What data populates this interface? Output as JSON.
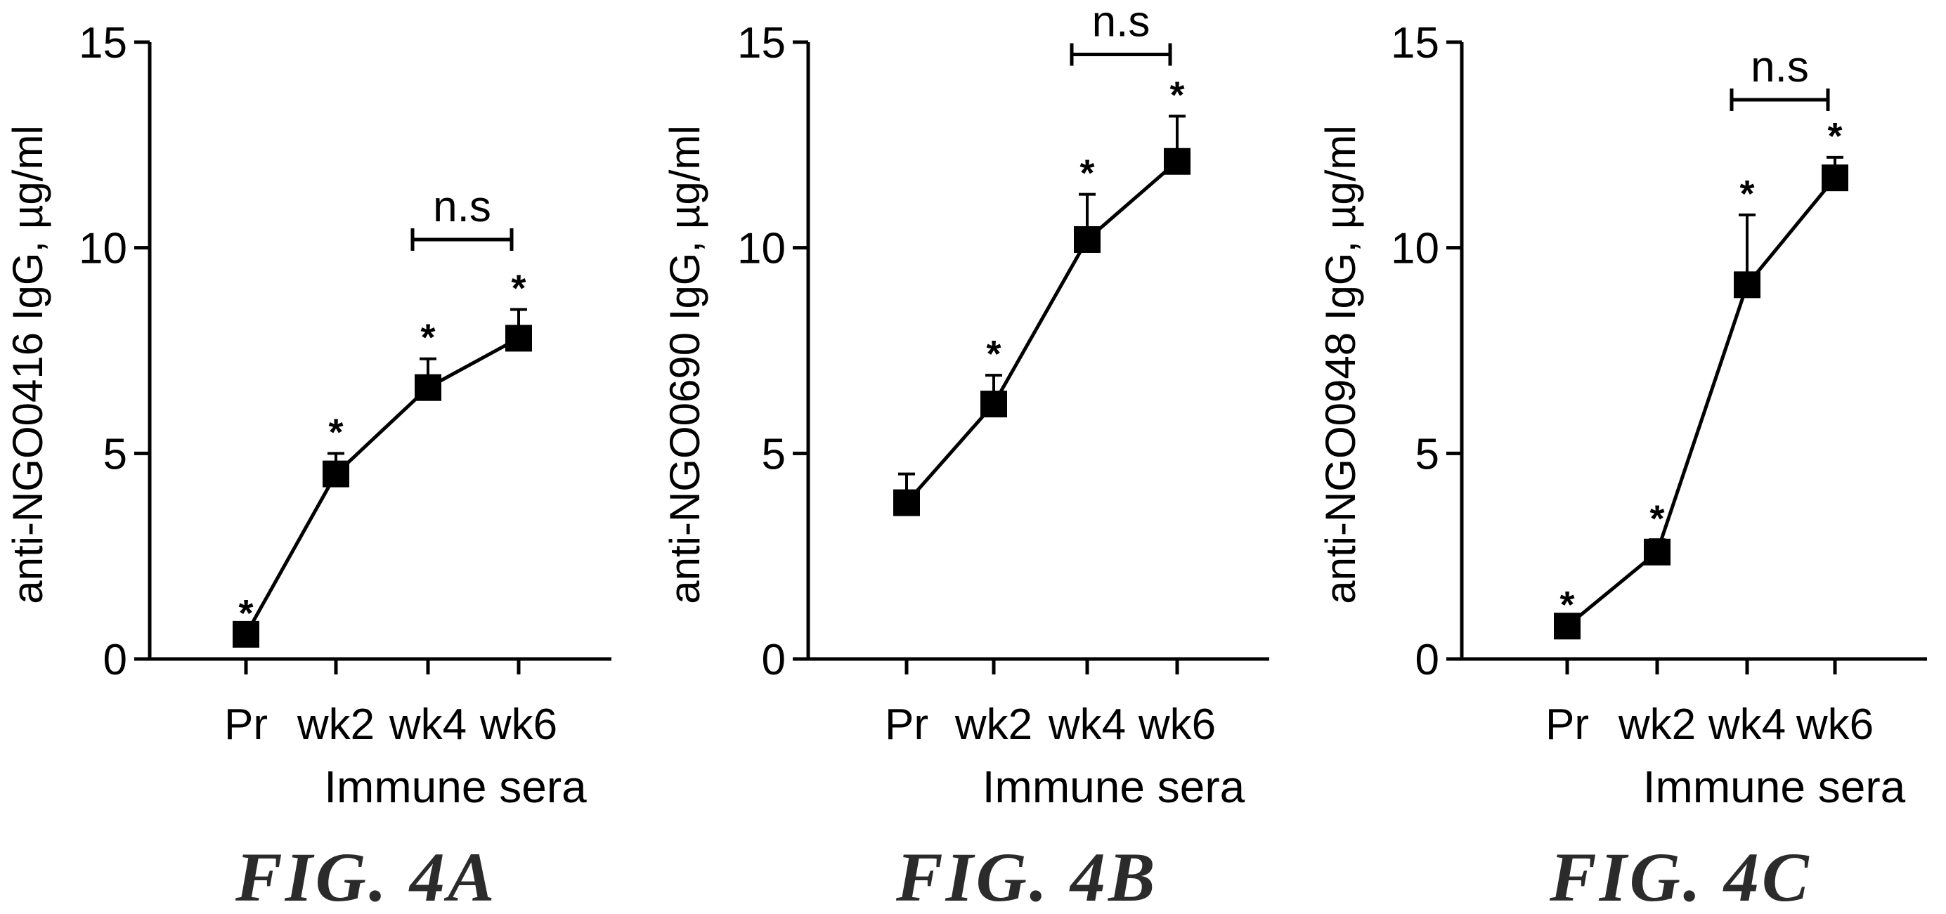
{
  "chart_data": [
    {
      "type": "line",
      "caption": "FIG. 4A",
      "categories": [
        "Pr",
        "wk2",
        "wk4",
        "wk6"
      ],
      "values": [
        0.6,
        4.5,
        6.6,
        7.8
      ],
      "error": [
        0.0,
        0.5,
        0.7,
        0.7
      ],
      "significance": [
        "*",
        "*",
        "*",
        "*"
      ],
      "bracket": {
        "from": 2,
        "to": 3,
        "label": "n.s",
        "y": 10.2
      },
      "xlabel": "Immune sera",
      "ylabel": "anti-NGO0416 IgG, µg/ml",
      "ylim": [
        0,
        15
      ],
      "yticks": [
        0,
        5,
        10,
        15
      ],
      "grid": false
    },
    {
      "type": "line",
      "caption": "FIG. 4B",
      "categories": [
        "Pr",
        "wk2",
        "wk4",
        "wk6"
      ],
      "values": [
        3.8,
        6.2,
        10.2,
        12.1
      ],
      "error": [
        0.7,
        0.7,
        1.1,
        1.1
      ],
      "significance": [
        "",
        "*",
        "*",
        "*"
      ],
      "bracket": {
        "from": 2,
        "to": 3,
        "label": "n.s",
        "y": 14.7
      },
      "xlabel": "Immune sera",
      "ylabel": "anti-NGO0690 IgG, µg/ml",
      "ylim": [
        0,
        15
      ],
      "yticks": [
        0,
        5,
        10,
        15
      ],
      "grid": false
    },
    {
      "type": "line",
      "caption": "FIG. 4C",
      "categories": [
        "Pr",
        "wk2",
        "wk4",
        "wk6"
      ],
      "values": [
        0.8,
        2.6,
        9.1,
        11.7
      ],
      "error": [
        0.0,
        0.3,
        1.7,
        0.5
      ],
      "significance": [
        "*",
        "*",
        "*",
        "*"
      ],
      "bracket": {
        "from": 2,
        "to": 3,
        "label": "n.s",
        "y": 13.6
      },
      "xlabel": "Immune sera",
      "ylabel": "anti-NGO0948 IgG, µg/ml",
      "ylim": [
        0,
        15
      ],
      "yticks": [
        0,
        5,
        10,
        15
      ],
      "grid": false
    }
  ],
  "colors": {
    "ink": "#000000",
    "caption": "#2b2b2b",
    "background": "#ffffff"
  }
}
